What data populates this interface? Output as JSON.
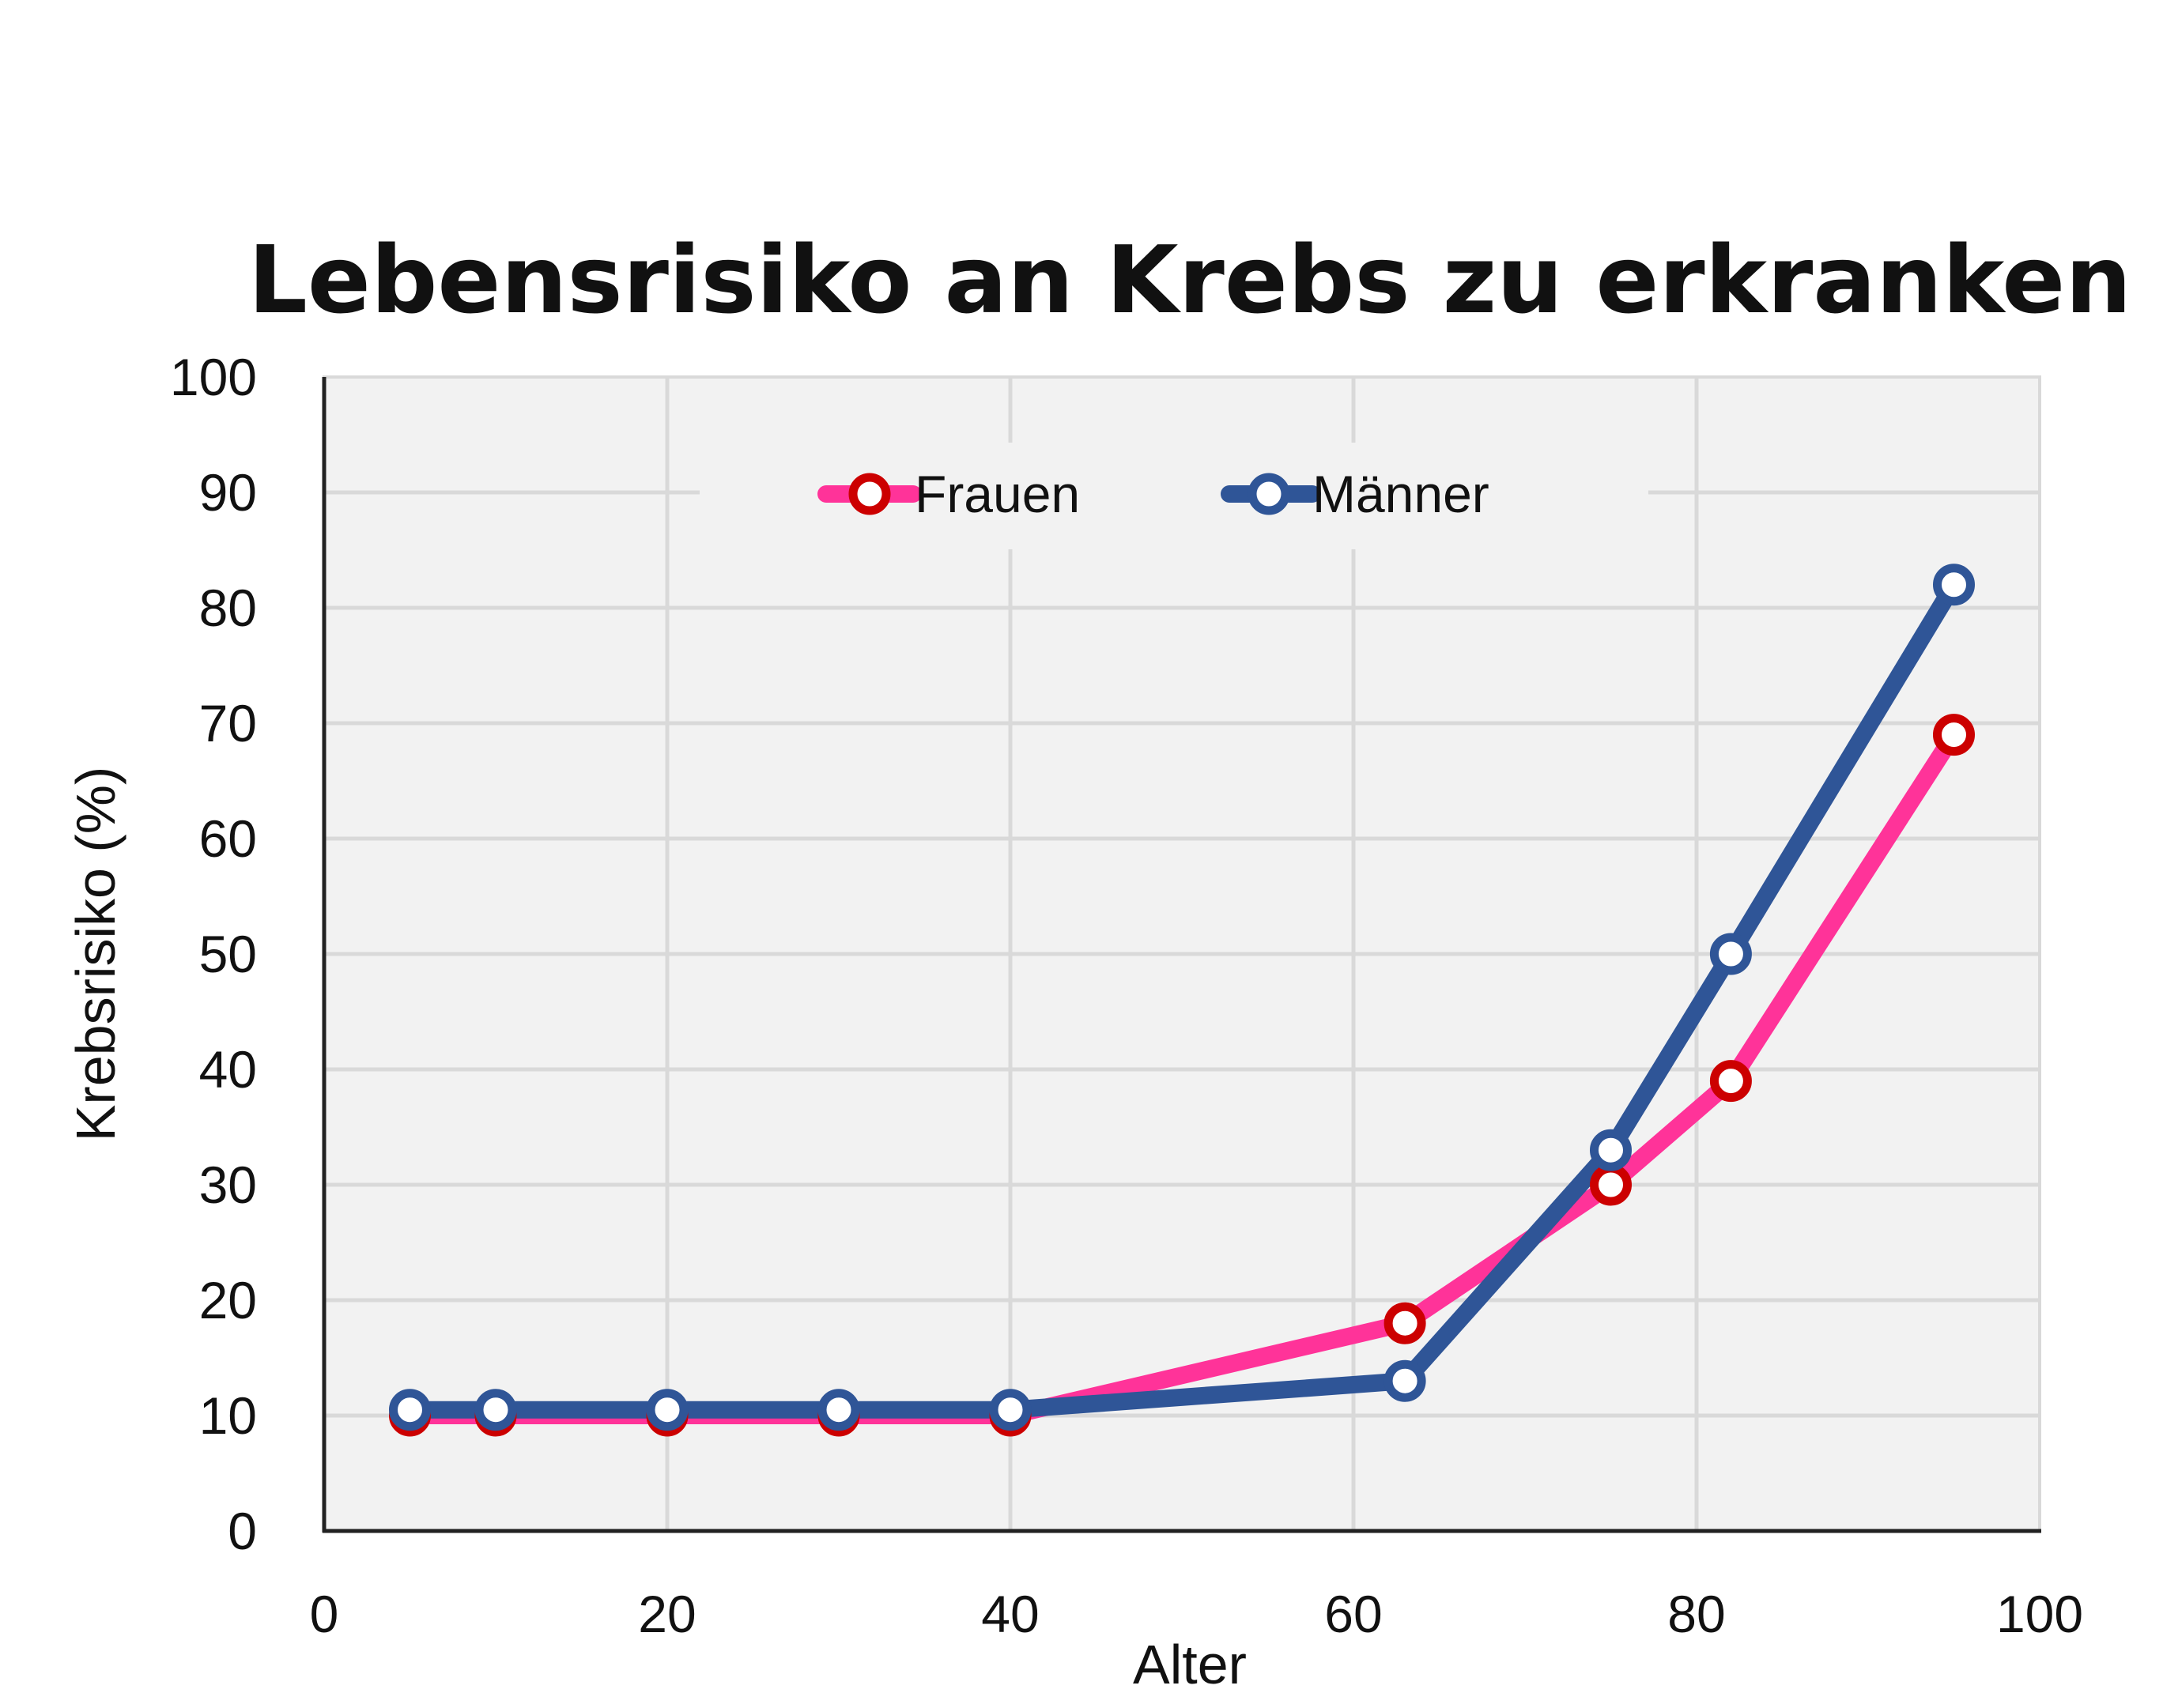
{
  "chart_data": {
    "type": "line",
    "title": "Lebensrisiko an Krebs zu erkranken",
    "xlabel": "Alter",
    "ylabel": "Krebsrisiko (%)",
    "xlim": [
      0,
      100
    ],
    "ylim": [
      0,
      100
    ],
    "xticks": [
      0,
      20,
      40,
      60,
      80,
      100
    ],
    "yticks": [
      0,
      10,
      20,
      30,
      40,
      50,
      60,
      70,
      80,
      90,
      100
    ],
    "grid": true,
    "legend_position": "top",
    "series": [
      {
        "name": "Frauen",
        "color": "#ff3399",
        "marker_edge": "#cc0000",
        "points": [
          [
            5,
            10
          ],
          [
            10,
            10
          ],
          [
            20,
            10
          ],
          [
            30,
            10
          ],
          [
            40,
            10
          ],
          [
            63,
            18
          ],
          [
            75,
            30
          ],
          [
            82,
            39
          ],
          [
            95,
            69
          ]
        ]
      },
      {
        "name": "Männer",
        "color": "#2f5597",
        "marker_edge": "#2f5597",
        "points": [
          [
            5,
            10.5
          ],
          [
            10,
            10.5
          ],
          [
            20,
            10.5
          ],
          [
            30,
            10.5
          ],
          [
            40,
            10.5
          ],
          [
            63,
            13
          ],
          [
            75,
            33
          ],
          [
            82,
            50
          ],
          [
            95,
            82
          ]
        ]
      }
    ]
  }
}
